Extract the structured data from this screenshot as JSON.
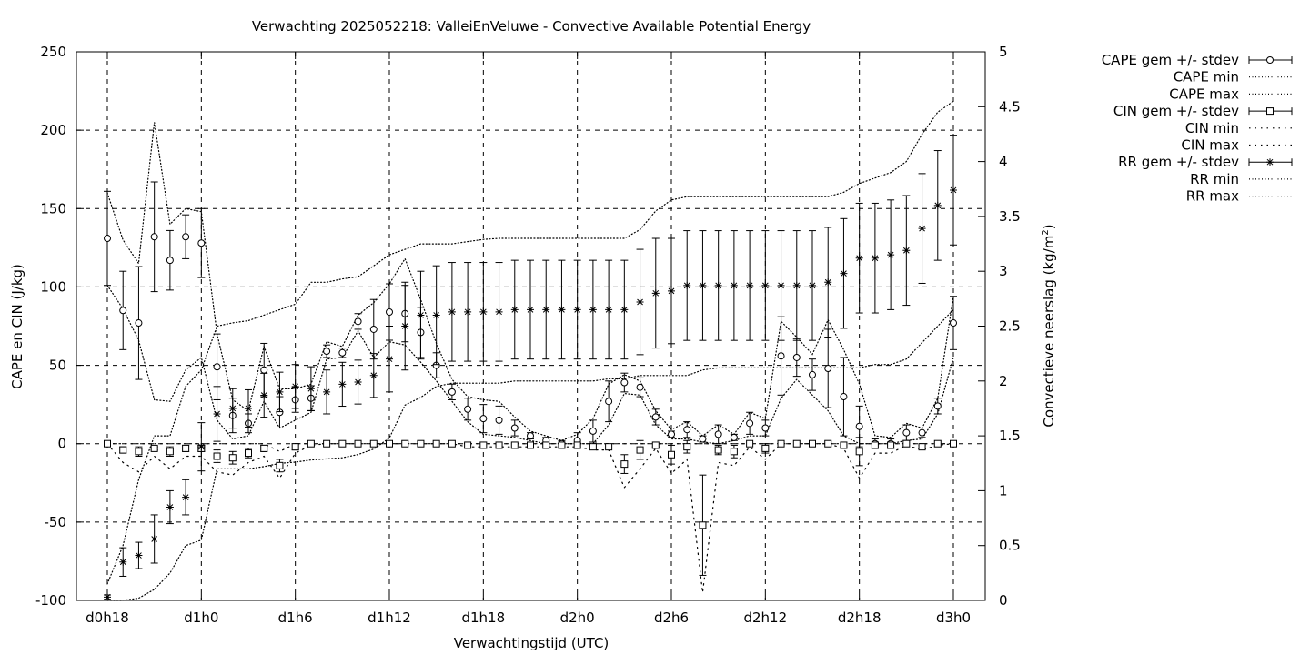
{
  "chart_data": {
    "type": "line",
    "title": "Verwachting 2025052218: ValleiEnVeluwe - Convective Available Potential Energy",
    "xlabel": "Verwachtingstijd (UTC)",
    "ylabel": "CAPE en CIN (J/kg)",
    "y2label_main": "Convectieve neerslag (kg/m",
    "y2label_sup": "2",
    "y2label_end": ")",
    "xlim": [
      0,
      54
    ],
    "ylim": [
      -100,
      250
    ],
    "y2lim": [
      0,
      5
    ],
    "grid": true,
    "legend_position": "top-right outside",
    "x_ticks": [
      {
        "value": 0,
        "label": "d0h18"
      },
      {
        "value": 6,
        "label": "d1h0"
      },
      {
        "value": 12,
        "label": "d1h6"
      },
      {
        "value": 18,
        "label": "d1h12"
      },
      {
        "value": 24,
        "label": "d1h18"
      },
      {
        "value": 30,
        "label": "d2h0"
      },
      {
        "value": 36,
        "label": "d2h6"
      },
      {
        "value": 42,
        "label": "d2h12"
      },
      {
        "value": 48,
        "label": "d2h18"
      },
      {
        "value": 54,
        "label": "d3h0"
      }
    ],
    "y_ticks": [
      {
        "value": -100,
        "label": "-100"
      },
      {
        "value": -50,
        "label": "-50"
      },
      {
        "value": 0,
        "label": "0"
      },
      {
        "value": 50,
        "label": "50"
      },
      {
        "value": 100,
        "label": "100"
      },
      {
        "value": 150,
        "label": "150"
      },
      {
        "value": 200,
        "label": "200"
      },
      {
        "value": 250,
        "label": "250"
      }
    ],
    "y2_ticks": [
      {
        "value": 0,
        "label": "0"
      },
      {
        "value": 0.5,
        "label": "0.5"
      },
      {
        "value": 1,
        "label": "1"
      },
      {
        "value": 1.5,
        "label": "1.5"
      },
      {
        "value": 2,
        "label": "2"
      },
      {
        "value": 2.5,
        "label": "2.5"
      },
      {
        "value": 3,
        "label": "3"
      },
      {
        "value": 3.5,
        "label": "3.5"
      },
      {
        "value": 4,
        "label": "4"
      },
      {
        "value": 4.5,
        "label": "4.5"
      },
      {
        "value": 5,
        "label": "5"
      }
    ],
    "x": [
      0,
      1,
      2,
      3,
      4,
      5,
      6,
      7,
      8,
      9,
      10,
      11,
      12,
      13,
      14,
      15,
      16,
      17,
      18,
      19,
      20,
      21,
      22,
      23,
      24,
      25,
      26,
      27,
      28,
      29,
      30,
      31,
      32,
      33,
      34,
      35,
      36,
      37,
      38,
      39,
      40,
      41,
      42,
      43,
      44,
      45,
      46,
      47,
      48,
      49,
      50,
      51,
      52,
      53,
      54
    ],
    "series": [
      {
        "name": "CAPE gem +/- stdev",
        "marker": "circle",
        "axis": "left",
        "mean": [
          131,
          85,
          77,
          132,
          117,
          132,
          128,
          49,
          18,
          13,
          47,
          20,
          28,
          29,
          59,
          58,
          78,
          73,
          84,
          83,
          71,
          50,
          33,
          22,
          16,
          15,
          10,
          5,
          2,
          0,
          2,
          8,
          27,
          39,
          36,
          17,
          6,
          9,
          3,
          6,
          4,
          13,
          10,
          56,
          55,
          44,
          48,
          30,
          11,
          0,
          0,
          7,
          7,
          24,
          77
        ],
        "sd": [
          30,
          25,
          36,
          35,
          19,
          14,
          22,
          21,
          11,
          6,
          17,
          10,
          8,
          8,
          4,
          3,
          5,
          19,
          18,
          18,
          16,
          8,
          5,
          7,
          9,
          9,
          5,
          2,
          2,
          2,
          5,
          7,
          13,
          6,
          6,
          5,
          2,
          5,
          2,
          6,
          2,
          7,
          5,
          25,
          12,
          10,
          25,
          25,
          13,
          3,
          3,
          5,
          3,
          5,
          17
        ]
      },
      {
        "name": "CAPE min",
        "line": "dotted",
        "axis": "left",
        "values": [
          101,
          86,
          66,
          28,
          27,
          47,
          55,
          15,
          3,
          5,
          27,
          10,
          15,
          20,
          54,
          55,
          72,
          55,
          65,
          63,
          52,
          40,
          27,
          14,
          6,
          5,
          4,
          2,
          0,
          0,
          0,
          0,
          12,
          32,
          31,
          12,
          3,
          3,
          1,
          0,
          2,
          5,
          5,
          29,
          41,
          31,
          21,
          5,
          0,
          0,
          0,
          2,
          3,
          19,
          55
        ]
      },
      {
        "name": "CAPE max",
        "line": "dotted",
        "axis": "left",
        "values": [
          160,
          130,
          115,
          205,
          140,
          150,
          148,
          70,
          28,
          21,
          62,
          35,
          35,
          38,
          65,
          62,
          82,
          90,
          102,
          118,
          92,
          64,
          41,
          30,
          28,
          27,
          17,
          8,
          5,
          2,
          6,
          16,
          38,
          44,
          40,
          21,
          9,
          14,
          5,
          12,
          6,
          20,
          16,
          78,
          68,
          57,
          79,
          60,
          38,
          5,
          4,
          13,
          10,
          29,
          94
        ]
      },
      {
        "name": "CIN gem +/- stdev",
        "marker": "square",
        "axis": "left",
        "mean": [
          0,
          -4,
          -5,
          -3,
          -5,
          -3,
          -3,
          -8,
          -9,
          -6,
          -3,
          -14,
          -2,
          0,
          0,
          0,
          0,
          0,
          0,
          0,
          0,
          0,
          0,
          -1,
          -1,
          -1,
          -1,
          -1,
          -1,
          -1,
          -1,
          -2,
          -2,
          -13,
          -4,
          -1,
          -7,
          -2,
          -52,
          -4,
          -5,
          0,
          -3,
          0,
          0,
          0,
          0,
          -1,
          -5,
          -1,
          -1,
          0,
          -2,
          0,
          0
        ],
        "sd": [
          0,
          2,
          3,
          1,
          3,
          2,
          2,
          4,
          4,
          3,
          2,
          4,
          2,
          0,
          0,
          0,
          0,
          0,
          0,
          0,
          0,
          0,
          0,
          0,
          0,
          0,
          0,
          0,
          0,
          0,
          0,
          0,
          0,
          6,
          6,
          1,
          6,
          4,
          32,
          3,
          4,
          0,
          3,
          0,
          0,
          0,
          0,
          0,
          9,
          2,
          2,
          0,
          1,
          0,
          0
        ]
      },
      {
        "name": "CIN min",
        "line": "dotted",
        "axis": "left",
        "values": [
          0,
          -12,
          -18,
          -8,
          -16,
          -8,
          -8,
          -18,
          -20,
          -12,
          -8,
          -22,
          -6,
          -1,
          0,
          0,
          0,
          0,
          0,
          0,
          0,
          0,
          0,
          -2,
          -2,
          -2,
          -2,
          -2,
          -2,
          -2,
          -2,
          -4,
          -4,
          -28,
          -16,
          -3,
          -19,
          -10,
          -95,
          -12,
          -14,
          -2,
          -10,
          0,
          0,
          0,
          0,
          -3,
          -22,
          -6,
          -6,
          -1,
          -4,
          -1,
          0
        ]
      },
      {
        "name": "CIN max",
        "line": "dotted",
        "axis": "left",
        "values": [
          0,
          0,
          0,
          0,
          0,
          0,
          0,
          0,
          0,
          0,
          0,
          -5,
          0,
          0,
          0,
          0,
          0,
          0,
          0,
          0,
          0,
          0,
          0,
          0,
          0,
          0,
          0,
          0,
          0,
          0,
          0,
          0,
          0,
          0,
          0,
          0,
          0,
          0,
          0,
          0,
          0,
          0,
          0,
          0,
          0,
          0,
          0,
          0,
          0,
          0,
          0,
          0,
          0,
          0,
          0
        ]
      },
      {
        "name": "RR gem +/- stdev",
        "marker": "star",
        "axis": "right",
        "mean": [
          0.03,
          0.35,
          0.41,
          0.56,
          0.85,
          0.94,
          1.4,
          1.7,
          1.75,
          1.75,
          1.87,
          1.9,
          1.95,
          1.93,
          1.9,
          1.97,
          1.99,
          2.05,
          2.2,
          2.5,
          2.6,
          2.6,
          2.63,
          2.63,
          2.63,
          2.63,
          2.65,
          2.65,
          2.65,
          2.65,
          2.65,
          2.65,
          2.65,
          2.65,
          2.72,
          2.8,
          2.82,
          2.87,
          2.87,
          2.87,
          2.87,
          2.87,
          2.87,
          2.87,
          2.87,
          2.87,
          2.9,
          2.98,
          3.12,
          3.12,
          3.15,
          3.19,
          3.39,
          3.6,
          3.74
        ],
        "sd": [
          0.02,
          0.13,
          0.12,
          0.22,
          0.15,
          0.16,
          0.22,
          0.25,
          0.18,
          0.17,
          0.2,
          0.18,
          0.2,
          0.2,
          0.2,
          0.2,
          0.2,
          0.2,
          0.3,
          0.4,
          0.4,
          0.45,
          0.45,
          0.45,
          0.45,
          0.45,
          0.45,
          0.45,
          0.45,
          0.45,
          0.45,
          0.45,
          0.45,
          0.45,
          0.48,
          0.5,
          0.48,
          0.5,
          0.5,
          0.5,
          0.5,
          0.5,
          0.5,
          0.5,
          0.5,
          0.5,
          0.5,
          0.5,
          0.5,
          0.5,
          0.5,
          0.5,
          0.5,
          0.5,
          0.5
        ]
      },
      {
        "name": "RR min",
        "line": "dotted",
        "axis": "right",
        "values": [
          0.0,
          0.0,
          0.02,
          0.1,
          0.25,
          0.5,
          0.55,
          1.2,
          1.2,
          1.2,
          1.22,
          1.25,
          1.26,
          1.28,
          1.29,
          1.3,
          1.33,
          1.38,
          1.48,
          1.78,
          1.85,
          1.95,
          1.98,
          1.98,
          1.98,
          1.98,
          2.0,
          2.0,
          2.0,
          2.0,
          2.0,
          2.0,
          2.02,
          2.02,
          2.05,
          2.05,
          2.05,
          2.05,
          2.1,
          2.12,
          2.12,
          2.12,
          2.12,
          2.12,
          2.12,
          2.12,
          2.12,
          2.12,
          2.12,
          2.15,
          2.15,
          2.2,
          2.35,
          2.5,
          2.65
        ]
      },
      {
        "name": "RR max",
        "line": "dotted",
        "axis": "right",
        "values": [
          0.15,
          0.5,
          1.1,
          1.5,
          1.5,
          1.95,
          2.1,
          2.5,
          2.53,
          2.55,
          2.6,
          2.65,
          2.7,
          2.9,
          2.9,
          2.93,
          2.95,
          3.05,
          3.15,
          3.2,
          3.25,
          3.25,
          3.25,
          3.27,
          3.29,
          3.3,
          3.3,
          3.3,
          3.3,
          3.3,
          3.3,
          3.3,
          3.3,
          3.3,
          3.38,
          3.55,
          3.65,
          3.68,
          3.68,
          3.68,
          3.68,
          3.68,
          3.68,
          3.68,
          3.68,
          3.68,
          3.68,
          3.72,
          3.8,
          3.85,
          3.9,
          4.0,
          4.25,
          4.45,
          4.55
        ]
      }
    ]
  }
}
